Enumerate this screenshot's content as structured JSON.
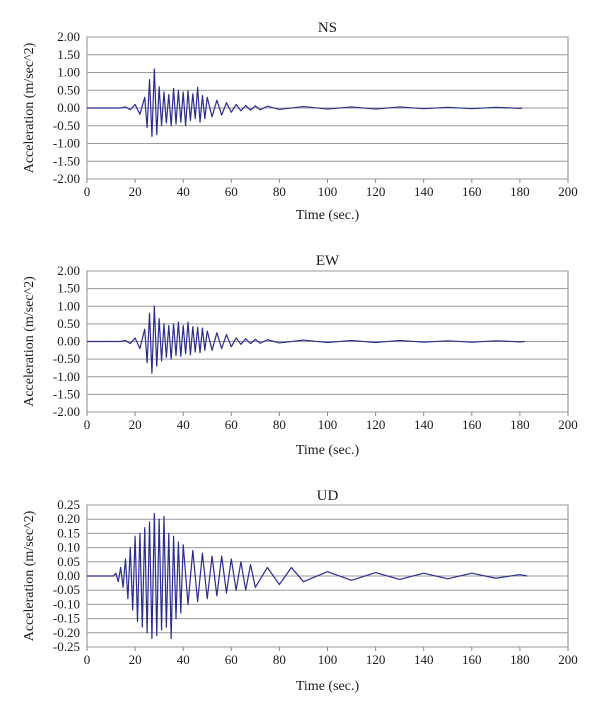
{
  "chart_data": [
    {
      "type": "line",
      "title": "NS",
      "xlabel": "Time (sec.)",
      "ylabel": "Acceleration (m/sec^2)",
      "xlim": [
        0,
        200
      ],
      "ylim": [
        -2.0,
        2.0
      ],
      "xticks": [
        0,
        20,
        40,
        60,
        80,
        100,
        120,
        140,
        160,
        180,
        200
      ],
      "yticks": [
        -2.0,
        -1.5,
        -1.0,
        -0.5,
        0.0,
        0.5,
        1.0,
        1.5,
        2.0
      ],
      "ytick_labels": [
        "-2.00",
        "-1.50",
        "-1.00",
        "-0.50",
        "0.00",
        "0.50",
        "1.00",
        "1.50",
        "2.00"
      ],
      "grid": true,
      "line_color": "#2b2d8f",
      "series": [
        {
          "x": [
            0,
            14,
            16,
            18,
            20,
            22,
            24,
            25,
            26,
            27,
            28,
            29,
            30,
            31,
            32,
            33,
            34,
            35,
            36,
            37,
            38,
            39,
            40,
            41,
            42,
            43,
            44,
            45,
            46,
            47,
            48,
            49,
            50,
            52,
            54,
            56,
            58,
            60,
            62,
            64,
            66,
            68,
            70,
            72,
            75,
            80,
            90,
            100,
            110,
            120,
            130,
            140,
            150,
            160,
            170,
            180,
            181
          ],
          "y": [
            0,
            0,
            0.03,
            -0.05,
            0.1,
            -0.18,
            0.3,
            -0.55,
            0.8,
            -0.8,
            1.1,
            -0.75,
            0.6,
            -0.5,
            0.45,
            -0.42,
            0.38,
            -0.5,
            0.55,
            -0.45,
            0.5,
            -0.4,
            0.45,
            -0.5,
            0.48,
            -0.35,
            0.4,
            -0.3,
            0.58,
            -0.4,
            0.35,
            -0.3,
            0.3,
            -0.25,
            0.22,
            -0.2,
            0.15,
            -0.12,
            0.1,
            -0.08,
            0.07,
            -0.06,
            0.06,
            -0.05,
            0.05,
            -0.04,
            0.04,
            -0.03,
            0.03,
            -0.03,
            0.03,
            -0.02,
            0.02,
            -0.02,
            0.02,
            -0.01,
            0
          ]
        }
      ]
    },
    {
      "type": "line",
      "title": "EW",
      "xlabel": "Time (sec.)",
      "ylabel": "Acceleration (m/sec^2)",
      "xlim": [
        0,
        200
      ],
      "ylim": [
        -2.0,
        2.0
      ],
      "xticks": [
        0,
        20,
        40,
        60,
        80,
        100,
        120,
        140,
        160,
        180,
        200
      ],
      "yticks": [
        -2.0,
        -1.5,
        -1.0,
        -0.5,
        0.0,
        0.5,
        1.0,
        1.5,
        2.0
      ],
      "ytick_labels": [
        "-2.00",
        "-1.50",
        "-1.00",
        "-0.50",
        "0.00",
        "0.50",
        "1.00",
        "1.50",
        "2.00"
      ],
      "grid": true,
      "line_color": "#2b2d8f",
      "series": [
        {
          "x": [
            0,
            14,
            16,
            18,
            20,
            22,
            24,
            25,
            26,
            27,
            28,
            29,
            30,
            31,
            32,
            33,
            34,
            35,
            36,
            37,
            38,
            39,
            40,
            41,
            42,
            43,
            44,
            45,
            46,
            47,
            48,
            49,
            50,
            52,
            54,
            56,
            58,
            60,
            62,
            64,
            66,
            68,
            70,
            72,
            75,
            80,
            90,
            100,
            110,
            120,
            130,
            140,
            150,
            160,
            170,
            180,
            182
          ],
          "y": [
            0,
            0,
            0.03,
            -0.06,
            0.1,
            -0.2,
            0.35,
            -0.6,
            0.8,
            -0.9,
            1.0,
            -0.7,
            0.65,
            -0.55,
            0.5,
            -0.45,
            0.45,
            -0.5,
            0.5,
            -0.4,
            0.55,
            -0.42,
            0.45,
            -0.35,
            0.55,
            -0.38,
            0.42,
            -0.3,
            0.4,
            -0.32,
            0.38,
            -0.25,
            0.3,
            -0.25,
            0.25,
            -0.2,
            0.2,
            -0.15,
            0.1,
            -0.08,
            0.08,
            -0.06,
            0.06,
            -0.05,
            0.05,
            -0.04,
            0.04,
            -0.03,
            0.03,
            -0.03,
            0.03,
            -0.02,
            0.02,
            -0.02,
            0.02,
            -0.01,
            0
          ]
        }
      ]
    },
    {
      "type": "line",
      "title": "UD",
      "xlabel": "Time (sec.)",
      "ylabel": "Acceleration (m/sec^2)",
      "xlim": [
        0,
        200
      ],
      "ylim": [
        -0.25,
        0.25
      ],
      "xticks": [
        0,
        20,
        40,
        60,
        80,
        100,
        120,
        140,
        160,
        180,
        200
      ],
      "yticks": [
        -0.25,
        -0.2,
        -0.15,
        -0.1,
        -0.05,
        0.0,
        0.05,
        0.1,
        0.15,
        0.2,
        0.25
      ],
      "ytick_labels": [
        "-0.25",
        "-0.20",
        "-0.15",
        "-0.10",
        "-0.05",
        "0.00",
        "0.05",
        "0.10",
        "0.15",
        "0.20",
        "0.25"
      ],
      "grid": true,
      "line_color": "#2b2d8f",
      "series": [
        {
          "x": [
            0,
            11,
            12,
            13,
            14,
            15,
            16,
            17,
            18,
            19,
            20,
            21,
            22,
            23,
            24,
            25,
            26,
            27,
            28,
            29,
            30,
            31,
            32,
            33,
            34,
            35,
            36,
            37,
            38,
            39,
            40,
            42,
            44,
            46,
            48,
            50,
            52,
            54,
            56,
            58,
            60,
            62,
            64,
            66,
            68,
            70,
            75,
            80,
            85,
            90,
            100,
            110,
            120,
            130,
            140,
            150,
            160,
            170,
            180,
            183
          ],
          "y": [
            0,
            0,
            0.01,
            -0.02,
            0.03,
            -0.04,
            0.06,
            -0.08,
            0.1,
            -0.12,
            0.14,
            -0.16,
            0.15,
            -0.18,
            0.17,
            -0.2,
            0.19,
            -0.22,
            0.22,
            -0.21,
            0.2,
            -0.19,
            0.21,
            -0.18,
            0.15,
            -0.22,
            0.14,
            -0.15,
            0.12,
            -0.13,
            0.11,
            -0.1,
            0.09,
            -0.09,
            0.08,
            -0.08,
            0.07,
            -0.07,
            0.07,
            -0.06,
            0.06,
            -0.05,
            0.05,
            -0.05,
            0.04,
            -0.04,
            0.03,
            -0.03,
            0.03,
            -0.02,
            0.015,
            -0.015,
            0.012,
            -0.012,
            0.01,
            -0.01,
            0.01,
            -0.008,
            0.005,
            0
          ]
        }
      ]
    }
  ]
}
